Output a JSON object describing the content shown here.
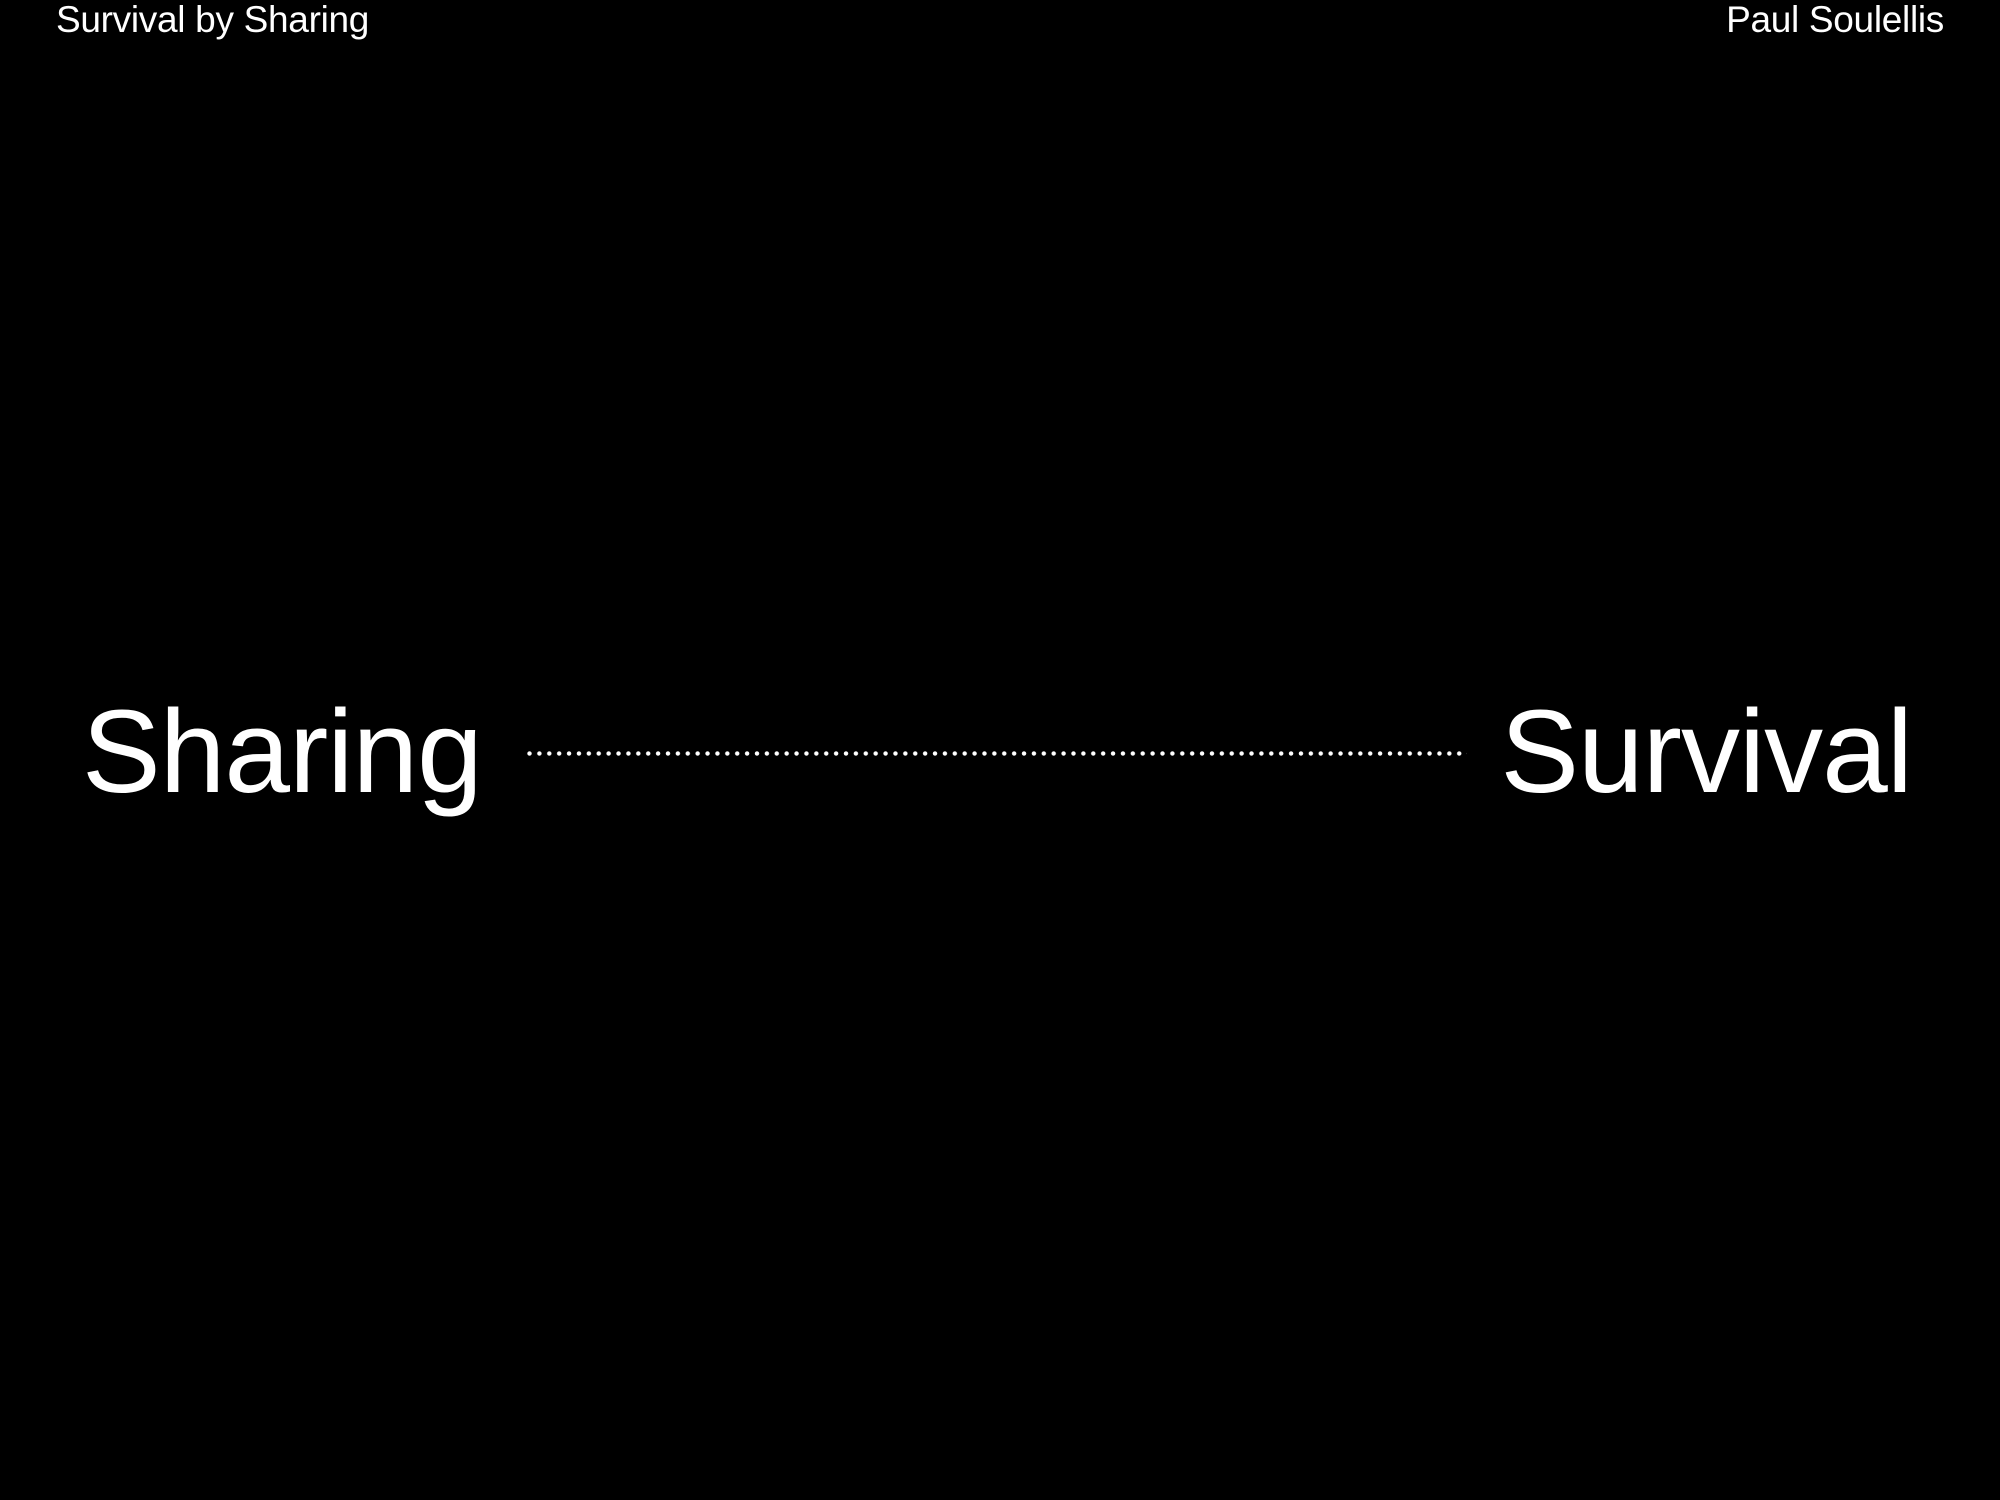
{
  "header": {
    "title": "Survival by Sharing",
    "author": "Paul Soulellis"
  },
  "slide": {
    "left_term": "Sharing",
    "right_term": "Survival"
  },
  "colors": {
    "background": "#000000",
    "text": "#ffffff"
  }
}
